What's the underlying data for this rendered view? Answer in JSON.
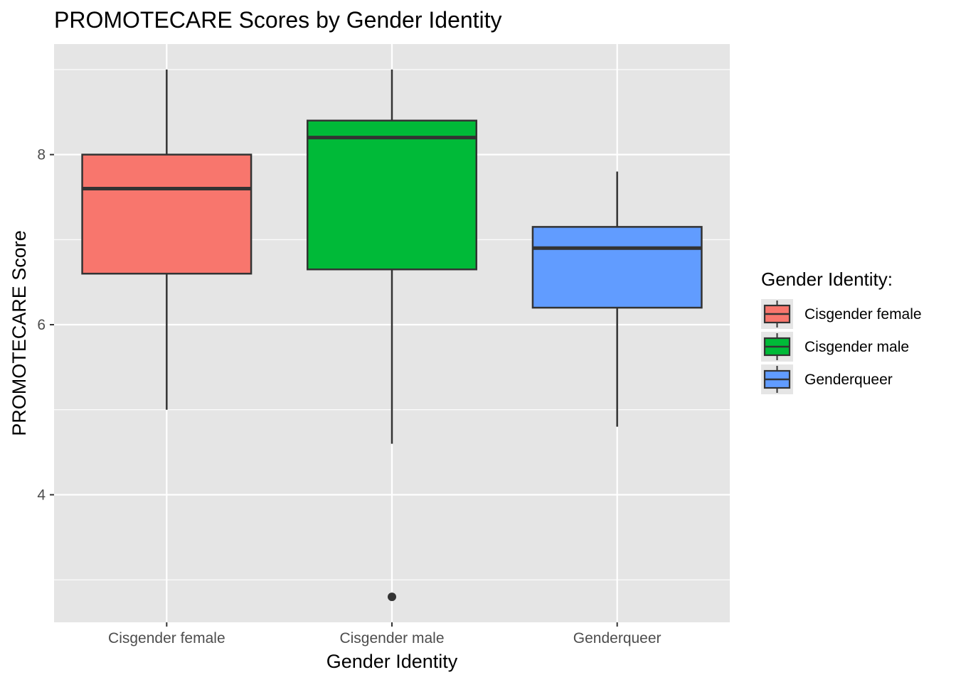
{
  "chart_data": {
    "type": "boxplot",
    "title": "PROMOTECARE Scores by Gender Identity",
    "xlabel": "Gender Identity",
    "ylabel": "PROMOTECARE Score",
    "ylim": [
      2.5,
      9.3
    ],
    "yticks": [
      4,
      6,
      8
    ],
    "grid": true,
    "legend": {
      "title": "Gender Identity:",
      "placement": "right"
    },
    "categories": [
      "Cisgender female",
      "Cisgender male",
      "Genderqueer"
    ],
    "series": [
      {
        "name": "Cisgender female",
        "color": "#F8766D",
        "whisker_low": 5.0,
        "q1": 6.6,
        "median": 7.6,
        "q3": 8.0,
        "whisker_high": 9.0,
        "outliers": []
      },
      {
        "name": "Cisgender male",
        "color": "#00BA38",
        "whisker_low": 4.6,
        "q1": 6.65,
        "median": 8.2,
        "q3": 8.4,
        "whisker_high": 9.0,
        "outliers": [
          2.8
        ]
      },
      {
        "name": "Genderqueer",
        "color": "#619CFF",
        "whisker_low": 4.8,
        "q1": 6.2,
        "median": 6.9,
        "q3": 7.15,
        "whisker_high": 7.8,
        "outliers": []
      }
    ],
    "colors": {
      "panel_background": "#e5e5e5",
      "grid_line": "#ffffff",
      "box_outline": "#333333"
    }
  }
}
